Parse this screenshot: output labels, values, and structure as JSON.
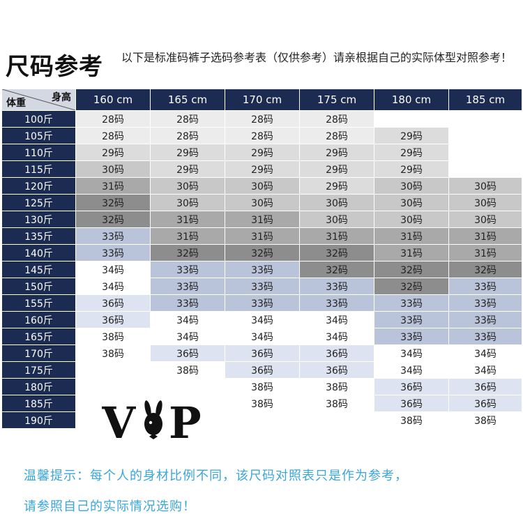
{
  "header": {
    "title": "尺码参考",
    "subtitle": "以下是标准码裤子选码参考表（仅供参考）请亲根据自己的实际体型对照参考！"
  },
  "table": {
    "corner_height_label": "身高",
    "corner_weight_label": "体重",
    "heights": [
      "160 cm",
      "165 cm",
      "170 cm",
      "175 cm",
      "180 cm",
      "185 cm"
    ],
    "weights": [
      "100斤",
      "105斤",
      "110斤",
      "115斤",
      "120斤",
      "125斤",
      "130斤",
      "135斤",
      "140斤",
      "145斤",
      "150斤",
      "155斤",
      "160斤",
      "165斤",
      "170斤",
      "175斤",
      "180斤",
      "185斤",
      "190斤"
    ],
    "cells": [
      [
        "28码",
        "28码",
        "28码",
        "28码",
        "",
        ""
      ],
      [
        "28码",
        "28码",
        "28码",
        "28码",
        "29码",
        ""
      ],
      [
        "29码",
        "29码",
        "29码",
        "29码",
        "29码",
        ""
      ],
      [
        "30码",
        "29码",
        "29码",
        "29码",
        "29码",
        ""
      ],
      [
        "31码",
        "30码",
        "30码",
        "29码",
        "30码",
        "30码"
      ],
      [
        "32码",
        "30码",
        "30码",
        "30码",
        "30码",
        "30码"
      ],
      [
        "32码",
        "31码",
        "31码",
        "30码",
        "30码",
        "30码"
      ],
      [
        "33码",
        "31码",
        "31码",
        "31码",
        "31码",
        "31码"
      ],
      [
        "33码",
        "32码",
        "32码",
        "32码",
        "31码",
        "31码"
      ],
      [
        "34码",
        "33码",
        "33码",
        "32码",
        "32码",
        "32码"
      ],
      [
        "34码",
        "33码",
        "33码",
        "33码",
        "32码",
        "33码"
      ],
      [
        "36码",
        "33码",
        "33码",
        "33码",
        "33码",
        "33码"
      ],
      [
        "36码",
        "34码",
        "34码",
        "34码",
        "33码",
        "33码"
      ],
      [
        "38码",
        "34码",
        "34码",
        "34码",
        "33码",
        "33码"
      ],
      [
        "38码",
        "36码",
        "36码",
        "36码",
        "34码",
        "34码"
      ],
      [
        "",
        "38码",
        "36码",
        "36码",
        "34码",
        "34码"
      ],
      [
        "",
        "",
        "38码",
        "38码",
        "36码",
        "36码"
      ],
      [
        "",
        "",
        "38码",
        "38码",
        "36码",
        "36码"
      ],
      [
        "",
        "",
        "",
        "",
        "38码",
        "38码"
      ]
    ],
    "colors": {
      "28": "#ececec",
      "29": "#dcdcdc",
      "30": "#c8c8c8",
      "31": "#a9a9a9",
      "32": "#8d8d8d",
      "33": "#b9c3d9",
      "34": "#ffffff",
      "36": "#dde3f0",
      "38": "#ffffff",
      "empty": "#ffffff",
      "header_bg": "#1c2b52"
    }
  },
  "logo": {
    "text": "VP"
  },
  "footer": {
    "line1": "温馨提示：每个人的身材比例不同，该尺码对照表只是作为参考，",
    "line2": "请参照自己的实际情况选购！"
  }
}
